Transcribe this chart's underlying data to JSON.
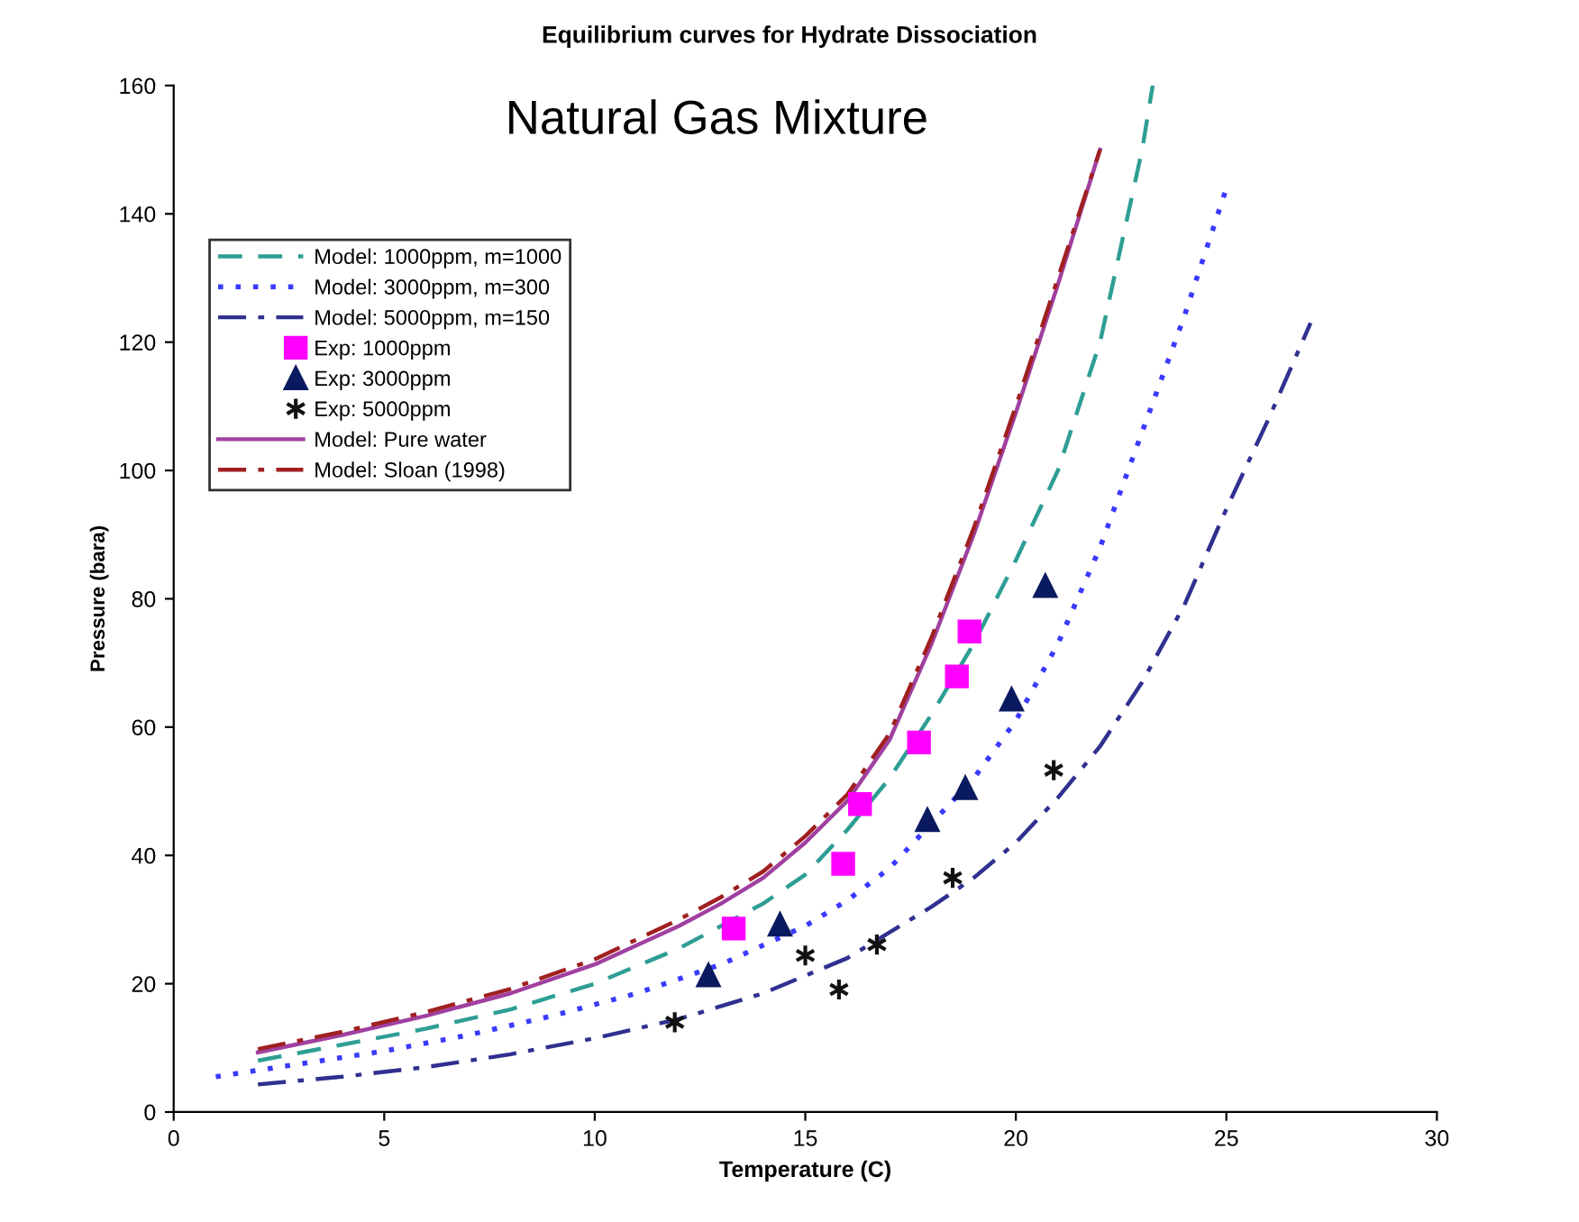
{
  "chart_data": {
    "type": "line",
    "title": "Equilibrium curves for Hydrate Dissociation",
    "subtitle": "Natural Gas Mixture",
    "xlabel": "Temperature (C)",
    "ylabel": "Pressure (bara)",
    "xlim": [
      0,
      30
    ],
    "xticks": [
      0,
      5,
      10,
      15,
      20,
      25,
      30
    ],
    "ylim": [
      0,
      160
    ],
    "yticks": [
      0,
      20,
      40,
      60,
      80,
      100,
      120,
      140,
      160
    ],
    "grid": false,
    "legend": "top left",
    "series": [
      {
        "name": "Model: 1000ppm, m=1000",
        "color": "#2e9e94",
        "line_style": "dashed",
        "x": [
          2,
          4,
          6,
          8,
          10,
          12,
          14,
          15,
          16,
          17,
          18,
          19,
          20,
          21,
          22,
          23,
          23.25
        ],
        "values": [
          8,
          10.5,
          13,
          16,
          20,
          25.5,
          32.5,
          37,
          44,
          52,
          62,
          73,
          86,
          100,
          120,
          150,
          160
        ]
      },
      {
        "name": "Model: 3000ppm, m=300",
        "color": "#3a3aff",
        "line_style": "dotted",
        "x": [
          1,
          3,
          5,
          7,
          9,
          11,
          13,
          15,
          16,
          17,
          18,
          19,
          20,
          21,
          22,
          23,
          24,
          25
        ],
        "values": [
          5.5,
          7.5,
          9.5,
          12,
          15,
          18.5,
          23,
          29,
          33,
          38,
          45,
          52,
          61,
          73,
          88,
          106,
          124,
          144
        ]
      },
      {
        "name": "Model: 5000ppm, m=150",
        "color": "#303090",
        "line_style": "dashdot",
        "x": [
          2,
          4,
          6,
          8,
          10,
          12,
          14,
          16,
          17,
          18,
          19,
          20,
          21,
          22,
          23,
          24,
          25,
          26,
          27
        ],
        "values": [
          4.3,
          5.5,
          7,
          9,
          11.5,
          14.5,
          18.5,
          24,
          28,
          32,
          36.5,
          42,
          49,
          57,
          67,
          79,
          94,
          108,
          123
        ]
      },
      {
        "name": "Exp: 1000ppm",
        "type": "scatter",
        "color": "#ff00ff",
        "marker": "square",
        "x": [
          13.3,
          15.9,
          16.3,
          17.7,
          18.6,
          18.9
        ],
        "values": [
          28.6,
          38.7,
          48,
          57.6,
          67.9,
          74.9
        ]
      },
      {
        "name": "Exp: 3000ppm",
        "type": "scatter",
        "color": "#0a1a60",
        "marker": "triangle",
        "x": [
          12.7,
          14.4,
          17.9,
          18.8,
          19.9,
          20.7
        ],
        "values": [
          21.3,
          29.2,
          45.5,
          50.5,
          64.3,
          82
        ]
      },
      {
        "name": "Exp: 5000ppm",
        "type": "scatter",
        "color": "#111111",
        "marker": "cross",
        "x": [
          11.9,
          15,
          15.8,
          16.7,
          18.5,
          20.9
        ],
        "values": [
          14,
          24.4,
          19.1,
          26.1,
          36.5,
          53.3
        ]
      },
      {
        "name": "Model: Pure water",
        "color": "#a040a0",
        "line_style": "solid",
        "x": [
          2,
          4,
          6,
          8,
          10,
          12,
          13,
          14,
          15,
          16,
          17,
          18,
          19,
          20,
          21,
          22
        ],
        "values": [
          9.3,
          12,
          15,
          18.5,
          23,
          29,
          32.5,
          36.5,
          42,
          48.5,
          58,
          73,
          90,
          109,
          129,
          150
        ]
      },
      {
        "name": "Model: Sloan (1998)",
        "color": "#a02020",
        "line_style": "dashdot",
        "x": [
          2,
          4,
          6,
          8,
          10,
          12,
          13,
          14,
          15,
          16,
          17,
          18,
          19,
          20,
          21,
          22
        ],
        "values": [
          9.8,
          12.5,
          15.6,
          19.2,
          23.8,
          30,
          33.5,
          37.5,
          43,
          49.5,
          59,
          74,
          91,
          110,
          130,
          150
        ]
      }
    ]
  }
}
